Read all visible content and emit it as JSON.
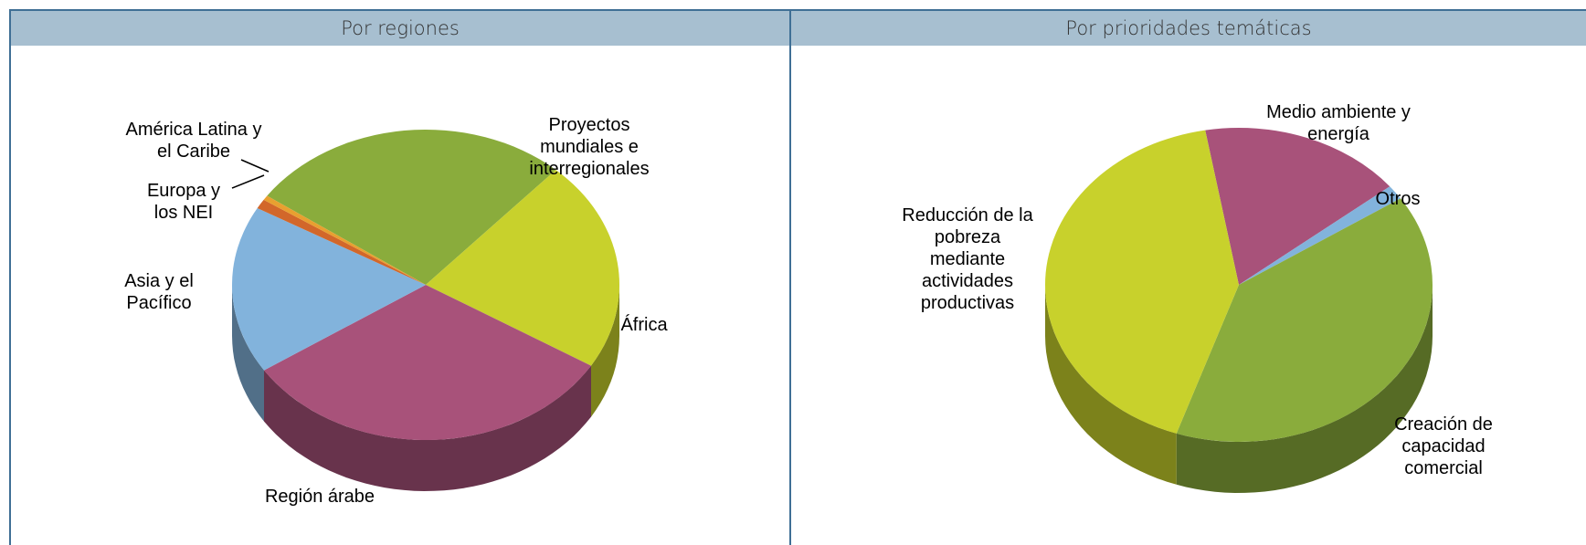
{
  "chart_data": [
    {
      "type": "pie3d",
      "title": "Por regiones",
      "categories": [
        "Proyectos mundiales e interregionales",
        "África",
        "Región árabe",
        "Asia y el Pacífico",
        "Europa y los NEI",
        "América Latina y el Caribe"
      ],
      "values": [
        27,
        22,
        32,
        17.5,
        1,
        0.5
      ],
      "colors": [
        "#8aac3c",
        "#c8d12c",
        "#a8527a",
        "#82b3dc",
        "#d2672a",
        "#e8a030"
      ]
    },
    {
      "type": "pie3d",
      "title": "Por prioridades temáticas",
      "categories": [
        "Medio ambiente y energía",
        "Otros",
        "Creación de capacidad comercial",
        "Reducción de la pobreza mediante actividades productivas"
      ],
      "values": [
        17,
        1.5,
        39.5,
        42
      ],
      "colors": [
        "#a8527a",
        "#82b3dc",
        "#8aac3c",
        "#c8d12c"
      ]
    }
  ]
}
